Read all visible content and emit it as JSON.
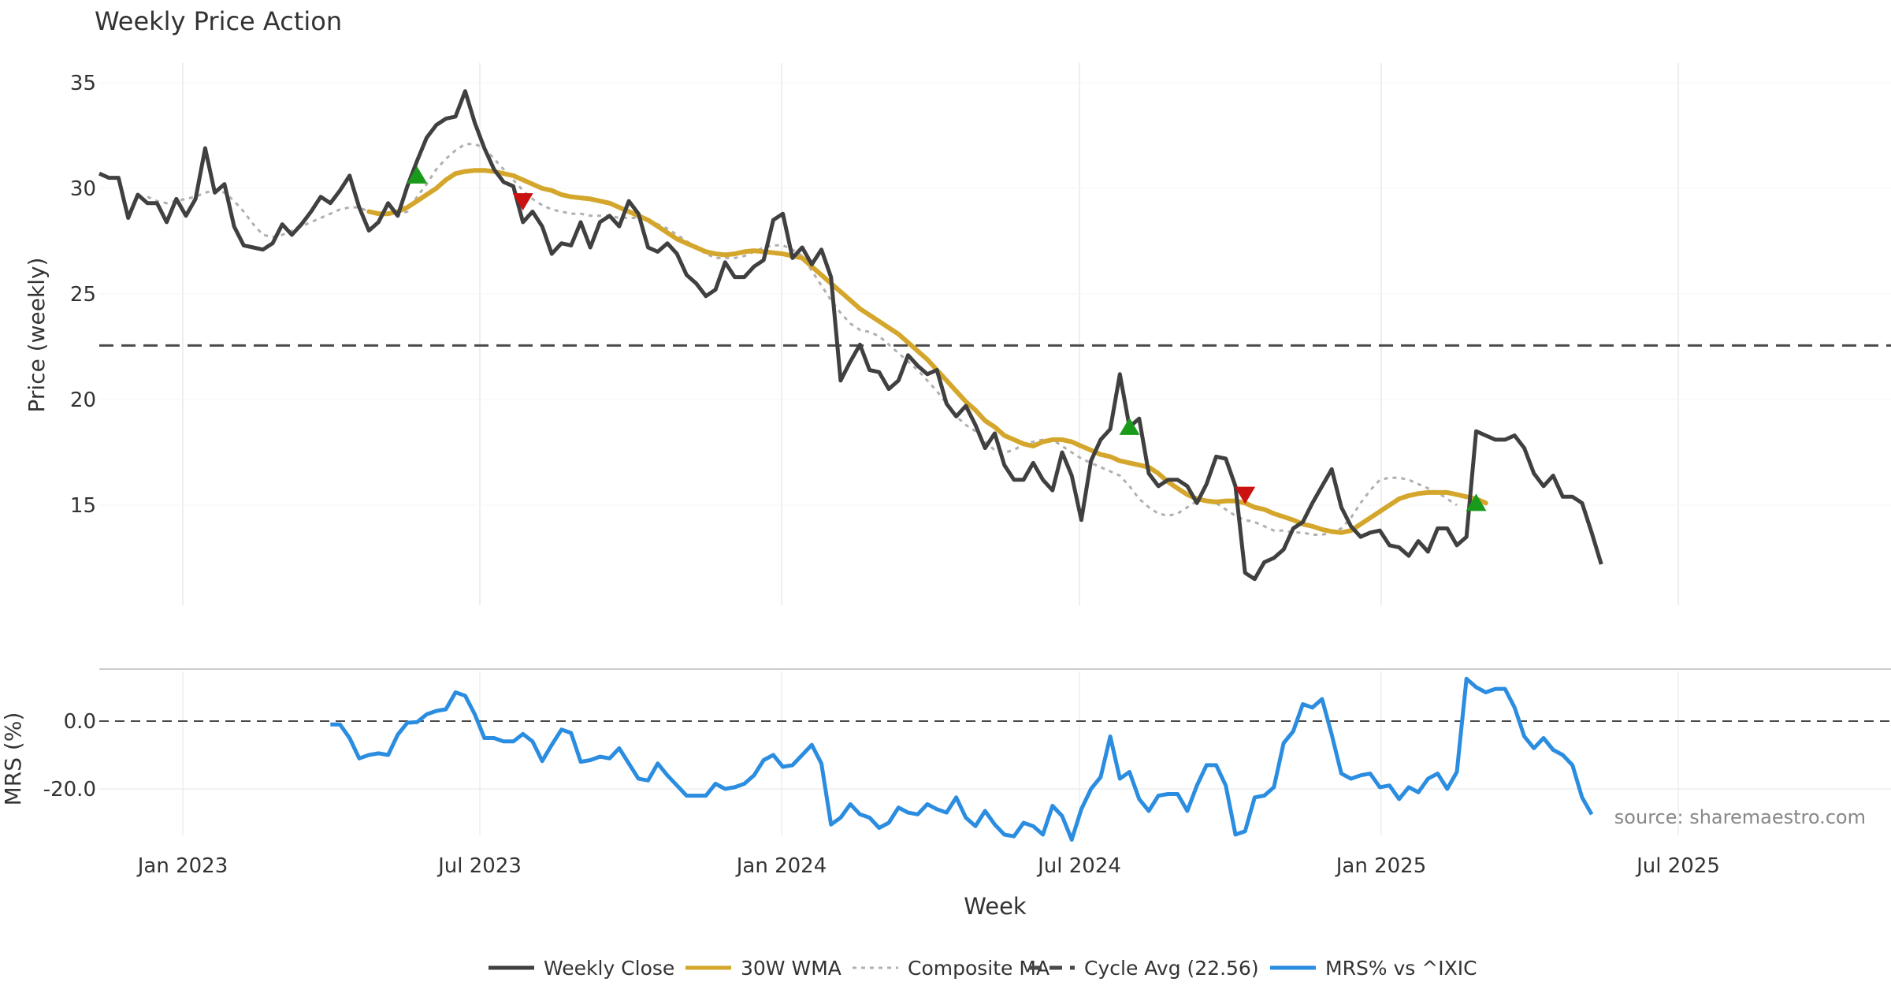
{
  "chart_data": {
    "type": "line",
    "title": "Weekly Price Action",
    "xlabel": "Week",
    "x_ticks": [
      "Jan 2023",
      "Jul 2023",
      "Jan 2024",
      "Jul 2024",
      "Jan 2025",
      "Jul 2025"
    ],
    "price_panel": {
      "ylabel": "Price (weekly)",
      "ylim": [
        10,
        36
      ],
      "yticks": [
        "15",
        "20",
        "25",
        "30",
        "35"
      ],
      "cycle_avg": 22.56,
      "weekly_close": [
        30.7,
        30.5,
        30.5,
        28.6,
        29.7,
        29.3,
        29.3,
        28.4,
        29.5,
        28.7,
        29.5,
        31.9,
        29.8,
        30.2,
        28.2,
        27.3,
        27.2,
        27.1,
        27.4,
        28.3,
        27.8,
        28.3,
        28.9,
        29.6,
        29.3,
        29.9,
        30.6,
        29.1,
        28.0,
        28.4,
        29.3,
        28.7,
        30.1,
        31.3,
        32.4,
        33.0,
        33.3,
        33.4,
        34.6,
        33.1,
        31.9,
        30.9,
        30.3,
        30.1,
        28.4,
        28.9,
        28.2,
        26.9,
        27.4,
        27.3,
        28.4,
        27.2,
        28.4,
        28.7,
        28.2,
        29.4,
        28.8,
        27.2,
        27.0,
        27.4,
        26.9,
        25.9,
        25.5,
        24.9,
        25.2,
        26.5,
        25.8,
        25.8,
        26.3,
        26.6,
        28.5,
        28.8,
        26.7,
        27.2,
        26.4,
        27.1,
        25.8,
        20.9,
        21.8,
        22.6,
        21.4,
        21.3,
        20.5,
        20.9,
        22.1,
        21.6,
        21.2,
        21.4,
        19.8,
        19.2,
        19.7,
        18.8,
        17.7,
        18.4,
        16.9,
        16.2,
        16.2,
        17.0,
        16.2,
        15.7,
        17.5,
        16.4,
        14.3,
        17.1,
        18.1,
        18.6,
        21.2,
        18.7,
        19.1,
        16.5,
        15.9,
        16.2,
        16.2,
        15.9,
        15.1,
        16.0,
        17.3,
        17.2,
        15.9,
        11.8,
        11.5,
        12.3,
        12.5,
        12.9,
        13.9,
        14.2,
        15.1,
        15.9,
        16.7,
        14.9,
        14.0,
        13.5,
        13.7,
        13.8,
        13.1,
        13.0,
        12.6,
        13.3,
        12.8,
        13.9,
        13.9,
        13.1,
        13.5,
        18.5,
        18.3,
        18.1,
        18.1,
        18.3,
        17.7,
        16.5,
        15.9,
        16.4,
        15.4,
        15.4,
        15.1,
        13.7,
        12.2
      ],
      "wma_30w": [
        null,
        null,
        null,
        null,
        null,
        null,
        null,
        null,
        null,
        null,
        null,
        null,
        null,
        null,
        null,
        null,
        null,
        null,
        null,
        null,
        null,
        null,
        null,
        null,
        null,
        null,
        null,
        null,
        28.9,
        28.8,
        28.8,
        28.9,
        29.1,
        29.4,
        29.7,
        30.0,
        30.4,
        30.7,
        30.8,
        30.85,
        30.85,
        30.8,
        30.7,
        30.6,
        30.4,
        30.2,
        30.0,
        29.9,
        29.7,
        29.6,
        29.55,
        29.5,
        29.4,
        29.3,
        29.1,
        28.9,
        28.7,
        28.5,
        28.2,
        27.9,
        27.6,
        27.4,
        27.2,
        27.0,
        26.9,
        26.85,
        26.9,
        27.0,
        27.05,
        27.0,
        26.95,
        26.9,
        26.8,
        26.7,
        26.3,
        25.9,
        25.5,
        25.1,
        24.7,
        24.3,
        24.0,
        23.7,
        23.4,
        23.1,
        22.7,
        22.3,
        21.9,
        21.4,
        20.9,
        20.4,
        19.9,
        19.5,
        19.0,
        18.7,
        18.3,
        18.1,
        17.9,
        17.8,
        18.0,
        18.1,
        18.1,
        18.0,
        17.8,
        17.6,
        17.4,
        17.3,
        17.1,
        17.0,
        16.9,
        16.8,
        16.5,
        16.1,
        15.8,
        15.5,
        15.3,
        15.2,
        15.15,
        15.2,
        15.2,
        15.1,
        14.9,
        14.8,
        14.6,
        14.45,
        14.3,
        14.1,
        14.0,
        13.85,
        13.75,
        13.7,
        13.8,
        14.1,
        14.4,
        14.7,
        15.0,
        15.3,
        15.45,
        15.55,
        15.6,
        15.6,
        15.6,
        15.5,
        15.4,
        15.3,
        15.1
      ]
    },
    "composite_ma": [
      null,
      null,
      null,
      null,
      null,
      29.6,
      29.4,
      29.3,
      29.4,
      29.5,
      29.6,
      29.8,
      29.9,
      29.8,
      29.4,
      28.9,
      28.3,
      27.8,
      27.7,
      27.8,
      28.0,
      28.2,
      28.4,
      28.6,
      28.8,
      29.0,
      29.1,
      29.1,
      28.9,
      28.8,
      28.8,
      28.8,
      28.9,
      29.6,
      30.2,
      30.9,
      31.4,
      31.8,
      32.1,
      32.1,
      31.9,
      31.4,
      30.9,
      30.4,
      29.9,
      29.5,
      29.2,
      29.0,
      28.9,
      28.8,
      28.8,
      28.7,
      28.7,
      28.7,
      28.6,
      28.6,
      28.6,
      28.5,
      28.3,
      28.1,
      27.8,
      27.5,
      27.2,
      26.9,
      26.7,
      26.7,
      26.7,
      26.8,
      27.0,
      27.2,
      27.3,
      27.3,
      27.1,
      26.8,
      26.1,
      25.4,
      24.7,
      24.1,
      23.6,
      23.3,
      23.2,
      23.0,
      22.6,
      22.2,
      21.8,
      21.4,
      20.9,
      20.4,
      19.8,
      19.2,
      18.8,
      18.5,
      18.0,
      17.6,
      17.5,
      17.6,
      17.9,
      18.0,
      18.1,
      18.1,
      17.8,
      17.5,
      17.2,
      17.0,
      16.8,
      16.6,
      16.4,
      15.9,
      15.3,
      14.9,
      14.6,
      14.5,
      14.6,
      14.9,
      15.2,
      15.3,
      15.1,
      14.8,
      14.5,
      14.3,
      14.2,
      14.0,
      13.8,
      13.8,
      13.7,
      13.7,
      13.6,
      13.6,
      13.7,
      13.9,
      14.4,
      15.1,
      15.7,
      16.2,
      16.3,
      16.3,
      16.2,
      16.0,
      15.8,
      15.6,
      15.3,
      15.0
    ],
    "markers": {
      "buy": [
        {
          "week": 33,
          "price": 30.6
        },
        {
          "week": 107,
          "price": 18.7
        },
        {
          "week": 143,
          "price": 15.1
        }
      ],
      "sell": [
        {
          "week": 44,
          "price": 29.4
        },
        {
          "week": 119,
          "price": 15.5
        }
      ]
    },
    "mrs_panel": {
      "ylabel": "MRS (%)",
      "ylim": [
        -35,
        13
      ],
      "yticks": [
        "0.0",
        "-20.0"
      ],
      "zero_line": 0,
      "start_week": 24,
      "mrs_pct": [
        -1,
        -1,
        -5,
        -11,
        -10,
        -9.5,
        -10,
        -4,
        -0.5,
        -0.3,
        2,
        3,
        3.5,
        8.5,
        7.5,
        2,
        -5,
        -5,
        -6,
        -6,
        -3.8,
        -6,
        -11.8,
        -7,
        -2.5,
        -3.5,
        -12,
        -11.5,
        -10.5,
        -11,
        -8,
        -12.5,
        -17,
        -17.5,
        -12.5,
        -16,
        -19,
        -22,
        -22,
        -22,
        -18.5,
        -20,
        -19.5,
        -18.5,
        -16,
        -11.5,
        -10,
        -13.5,
        -13,
        -10,
        -7,
        -12.5,
        -30.5,
        -28.5,
        -24.5,
        -27.5,
        -28.5,
        -31.5,
        -30,
        -25.5,
        -27,
        -27.5,
        -24.5,
        -26,
        -27,
        -22.5,
        -28.5,
        -31,
        -26.5,
        -30.5,
        -33.5,
        -34,
        -30,
        -31,
        -33.5,
        -25,
        -28,
        -35,
        -26,
        -20,
        -16.5,
        -4.5,
        -17,
        -15,
        -23,
        -26.5,
        -22,
        -21.5,
        -21.5,
        -26.5,
        -19,
        -13,
        -13,
        -19,
        -33.5,
        -32.5,
        -22.5,
        -22,
        -19.5,
        -6.5,
        -3,
        5,
        4,
        6.5,
        -4,
        -15.5,
        -17,
        -16,
        -15.5,
        -19.5,
        -19,
        -23,
        -19.5,
        -21,
        -17,
        -15.5,
        -20,
        -15,
        12.5,
        10,
        8.5,
        9.5,
        9.5,
        4,
        -4.5,
        -8,
        -5,
        -8.5,
        -10,
        -13,
        -22.5,
        -27.5
      ]
    },
    "legend": [
      {
        "label": "Weekly Close",
        "style": "solid",
        "color": "#404040"
      },
      {
        "label": "30W WMA",
        "style": "solid",
        "color": "#d4a72c"
      },
      {
        "label": "Composite MA",
        "style": "dotted",
        "color": "#b0b0b0"
      },
      {
        "label": "Cycle Avg (22.56)",
        "style": "dashed",
        "color": "#4a4a4a"
      },
      {
        "label": "MRS% vs ^IXIC",
        "style": "solid",
        "color": "#2b8de0"
      }
    ],
    "source_note": "source: sharemaestro.com",
    "colors": {
      "close": "#404040",
      "wma": "#d4a72c",
      "composite": "#b0b0b0",
      "cycle": "#4a4a4a",
      "mrs": "#2b8de0",
      "buy": "#1a9a1a",
      "sell": "#cc1111"
    }
  }
}
